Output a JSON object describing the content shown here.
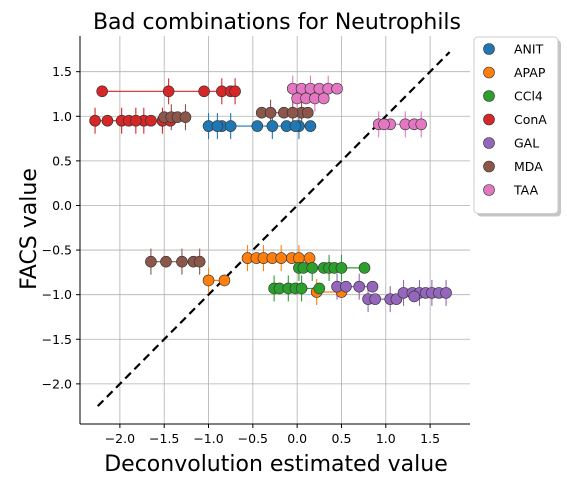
{
  "chart_data": {
    "type": "scatter",
    "title": "Bad combinations for Neutrophils",
    "xlabel": "Deconvolution estimated value",
    "ylabel": "FACS value",
    "xlim": [
      -2.45,
      1.95
    ],
    "ylim": [
      -2.45,
      1.9
    ],
    "xticks": [
      -2.0,
      -1.5,
      -1.0,
      -0.5,
      0.0,
      0.5,
      1.0,
      1.5
    ],
    "xtick_labels": [
      "−2.0",
      "−1.5",
      "−1.0",
      "−0.5",
      "0.0",
      "0.5",
      "1.0",
      "1.5"
    ],
    "yticks": [
      1.5,
      1.0,
      0.5,
      0.0,
      -0.5,
      -1.0,
      -1.5,
      -2.0
    ],
    "ytick_labels": [
      "1.5",
      "1.0",
      "0.5",
      "0.0",
      "−0.5",
      "−1.0",
      "−1.5",
      "−2.0"
    ],
    "grid": true,
    "legend_position": "outside-right",
    "diagonal": {
      "x": [
        -2.25,
        1.72
      ],
      "y": [
        -2.25,
        1.72
      ],
      "style": "dashed",
      "color": "#000000"
    },
    "series": [
      {
        "name": "ANIT",
        "color": "#1f77b4",
        "points": [
          {
            "x": -1.0,
            "y": 0.89
          },
          {
            "x": -0.85,
            "y": 0.89
          },
          {
            "x": -0.75,
            "y": 0.89
          },
          {
            "x": -0.45,
            "y": 0.89
          },
          {
            "x": -0.28,
            "y": 0.89
          },
          {
            "x": -0.12,
            "y": 0.89
          },
          {
            "x": 0.02,
            "y": 0.89
          },
          {
            "x": 0.15,
            "y": 0.89
          },
          {
            "x": -0.9,
            "y": 0.89
          },
          {
            "x": -0.02,
            "y": 0.89
          }
        ]
      },
      {
        "name": "APAP",
        "color": "#ff7f0e",
        "points": [
          {
            "x": -1.0,
            "y": -0.84
          },
          {
            "x": -0.82,
            "y": -0.84
          },
          {
            "x": -0.56,
            "y": -0.59
          },
          {
            "x": -0.46,
            "y": -0.59
          },
          {
            "x": -0.38,
            "y": -0.59
          },
          {
            "x": -0.28,
            "y": -0.59
          },
          {
            "x": -0.18,
            "y": -0.59
          },
          {
            "x": -0.06,
            "y": -0.59
          },
          {
            "x": 0.02,
            "y": -0.59
          },
          {
            "x": 0.14,
            "y": -0.59
          },
          {
            "x": 0.22,
            "y": -0.97
          },
          {
            "x": 0.5,
            "y": -0.97
          }
        ]
      },
      {
        "name": "CCl4",
        "color": "#2ca02c",
        "points": [
          {
            "x": -0.26,
            "y": -0.93
          },
          {
            "x": -0.2,
            "y": -0.93
          },
          {
            "x": -0.1,
            "y": -0.93
          },
          {
            "x": -0.02,
            "y": -0.93
          },
          {
            "x": 0.05,
            "y": -0.93
          },
          {
            "x": 0.25,
            "y": -0.93
          },
          {
            "x": 0.02,
            "y": -0.7
          },
          {
            "x": 0.07,
            "y": -0.7
          },
          {
            "x": 0.17,
            "y": -0.7
          },
          {
            "x": 0.3,
            "y": -0.7
          },
          {
            "x": 0.36,
            "y": -0.7
          },
          {
            "x": 0.42,
            "y": -0.7
          },
          {
            "x": 0.5,
            "y": -0.7
          },
          {
            "x": 0.76,
            "y": -0.7
          }
        ]
      },
      {
        "name": "ConA",
        "color": "#d62728",
        "points": [
          {
            "x": -2.28,
            "y": 0.95
          },
          {
            "x": -2.14,
            "y": 0.95
          },
          {
            "x": -1.98,
            "y": 0.95
          },
          {
            "x": -1.9,
            "y": 0.95
          },
          {
            "x": -1.73,
            "y": 0.95
          },
          {
            "x": -1.65,
            "y": 0.95
          },
          {
            "x": -1.52,
            "y": 0.95
          },
          {
            "x": -1.43,
            "y": 0.95
          },
          {
            "x": -1.82,
            "y": 0.95
          },
          {
            "x": -2.2,
            "y": 1.28
          },
          {
            "x": -1.45,
            "y": 1.28
          },
          {
            "x": -1.05,
            "y": 1.28
          },
          {
            "x": -0.85,
            "y": 1.28
          },
          {
            "x": -0.75,
            "y": 1.28
          },
          {
            "x": -0.7,
            "y": 1.28
          }
        ]
      },
      {
        "name": "GAL",
        "color": "#9467bd",
        "points": [
          {
            "x": 0.45,
            "y": -0.91
          },
          {
            "x": 0.55,
            "y": -0.91
          },
          {
            "x": 0.7,
            "y": -0.91
          },
          {
            "x": 0.85,
            "y": -0.91
          },
          {
            "x": 0.8,
            "y": -1.05
          },
          {
            "x": 0.88,
            "y": -1.05
          },
          {
            "x": 1.05,
            "y": -1.05
          },
          {
            "x": 1.12,
            "y": -1.05
          },
          {
            "x": 1.2,
            "y": -0.98
          },
          {
            "x": 1.3,
            "y": -0.98
          },
          {
            "x": 1.38,
            "y": -0.98
          },
          {
            "x": 1.45,
            "y": -0.98
          },
          {
            "x": 1.52,
            "y": -0.98
          },
          {
            "x": 1.6,
            "y": -0.98
          },
          {
            "x": 1.68,
            "y": -0.98
          },
          {
            "x": 1.32,
            "y": -1.02
          }
        ]
      },
      {
        "name": "MDA",
        "color": "#8c564b",
        "points": [
          {
            "x": -1.65,
            "y": -0.63
          },
          {
            "x": -1.48,
            "y": -0.63
          },
          {
            "x": -1.3,
            "y": -0.63
          },
          {
            "x": -1.17,
            "y": -0.63
          },
          {
            "x": -1.1,
            "y": -0.63
          },
          {
            "x": -1.5,
            "y": 0.99
          },
          {
            "x": -1.42,
            "y": 0.99
          },
          {
            "x": -1.35,
            "y": 0.99
          },
          {
            "x": -1.26,
            "y": 0.99
          },
          {
            "x": -0.4,
            "y": 1.04
          },
          {
            "x": -0.3,
            "y": 1.04
          },
          {
            "x": -0.15,
            "y": 1.04
          },
          {
            "x": 0.05,
            "y": 1.04
          },
          {
            "x": 0.12,
            "y": 1.04
          },
          {
            "x": -0.05,
            "y": 1.04
          }
        ]
      },
      {
        "name": "TAA",
        "color": "#e377c2",
        "points": [
          {
            "x": -0.05,
            "y": 1.31
          },
          {
            "x": 0.05,
            "y": 1.31
          },
          {
            "x": 0.15,
            "y": 1.31
          },
          {
            "x": 0.25,
            "y": 1.31
          },
          {
            "x": 0.35,
            "y": 1.31
          },
          {
            "x": 0.45,
            "y": 1.31
          },
          {
            "x": 0.0,
            "y": 1.2
          },
          {
            "x": 0.1,
            "y": 1.2
          },
          {
            "x": 0.2,
            "y": 1.2
          },
          {
            "x": 0.3,
            "y": 1.2
          },
          {
            "x": 0.92,
            "y": 0.91
          },
          {
            "x": 1.05,
            "y": 0.91
          },
          {
            "x": 1.22,
            "y": 0.91
          },
          {
            "x": 1.32,
            "y": 0.91
          },
          {
            "x": 1.4,
            "y": 0.91
          },
          {
            "x": 0.98,
            "y": 0.91
          }
        ]
      }
    ]
  }
}
